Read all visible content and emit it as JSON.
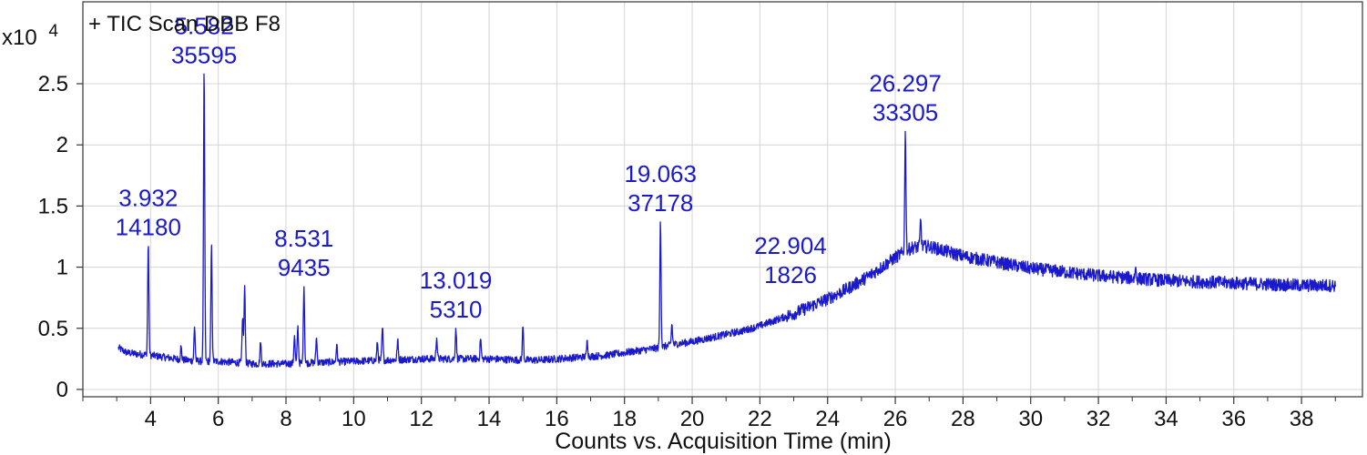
{
  "colors": {
    "trace": "#1a1acc",
    "label": "#1a1acc",
    "grid": "#d4d4d4",
    "axis": "#333333",
    "text": "#111111"
  },
  "chart_data": {
    "type": "line",
    "title": "+ TIC Scan DBB F8",
    "xlabel": "Counts vs. Acquisition Time (min)",
    "ylabel": "",
    "y_multiplier_label": {
      "base": "x10",
      "exponent": "4"
    },
    "xlim": [
      2.0,
      39.8
    ],
    "ylim": [
      -0.06,
      3.17
    ],
    "x_ticks": [
      4,
      6,
      8,
      10,
      12,
      14,
      16,
      18,
      20,
      22,
      24,
      26,
      28,
      30,
      32,
      34,
      36,
      38
    ],
    "y_ticks": [
      0,
      0.5,
      1,
      1.5,
      2,
      2.5
    ],
    "y_tick_labels": [
      "0",
      "0.5",
      "1",
      "1.5",
      "2",
      "2.5"
    ],
    "grid": true,
    "series": [
      {
        "baseline": {
          "x": [
            3.05,
            3.3,
            3.6,
            4.0,
            4.5,
            5.0,
            5.5,
            6.0,
            6.5,
            7.0,
            7.5,
            8.0,
            9.0,
            10.0,
            11.0,
            12.0,
            13.0,
            14.0,
            15.0,
            15.5,
            16.0,
            16.5,
            17.0,
            17.5,
            18.0,
            18.5,
            19.0,
            19.5,
            20.0,
            20.5,
            21.0,
            21.5,
            22.0,
            22.5,
            23.0,
            23.5,
            24.0,
            24.5,
            25.0,
            25.5,
            26.0,
            26.5,
            27.0,
            27.5,
            28.0,
            29.0,
            30.0,
            31.0,
            32.0,
            33.0,
            34.0,
            35.0,
            36.0,
            37.0,
            38.0,
            39.0
          ],
          "y": [
            0.34,
            0.3,
            0.29,
            0.28,
            0.26,
            0.24,
            0.23,
            0.23,
            0.22,
            0.21,
            0.21,
            0.21,
            0.22,
            0.23,
            0.24,
            0.25,
            0.25,
            0.25,
            0.24,
            0.24,
            0.25,
            0.26,
            0.27,
            0.28,
            0.3,
            0.32,
            0.34,
            0.37,
            0.39,
            0.42,
            0.45,
            0.48,
            0.52,
            0.57,
            0.62,
            0.68,
            0.74,
            0.81,
            0.89,
            0.98,
            1.08,
            1.16,
            1.17,
            1.13,
            1.09,
            1.04,
            0.99,
            0.96,
            0.93,
            0.91,
            0.89,
            0.88,
            0.87,
            0.86,
            0.85,
            0.85
          ]
        },
        "peaks": [
          {
            "x": 3.932,
            "h": 1.17
          },
          {
            "x": 4.9,
            "h": 0.35
          },
          {
            "x": 5.3,
            "h": 0.51
          },
          {
            "x": 5.582,
            "h": 2.58
          },
          {
            "x": 5.8,
            "h": 1.18
          },
          {
            "x": 6.72,
            "h": 0.58
          },
          {
            "x": 6.78,
            "h": 0.85
          },
          {
            "x": 7.25,
            "h": 0.38
          },
          {
            "x": 8.25,
            "h": 0.44
          },
          {
            "x": 8.35,
            "h": 0.52
          },
          {
            "x": 8.531,
            "h": 0.84
          },
          {
            "x": 8.9,
            "h": 0.42
          },
          {
            "x": 9.5,
            "h": 0.37
          },
          {
            "x": 10.7,
            "h": 0.38
          },
          {
            "x": 10.85,
            "h": 0.5
          },
          {
            "x": 11.3,
            "h": 0.4
          },
          {
            "x": 12.45,
            "h": 0.42
          },
          {
            "x": 13.019,
            "h": 0.5
          },
          {
            "x": 13.75,
            "h": 0.41
          },
          {
            "x": 15.0,
            "h": 0.51
          },
          {
            "x": 16.9,
            "h": 0.4
          },
          {
            "x": 19.063,
            "h": 1.37
          },
          {
            "x": 19.4,
            "h": 0.53
          },
          {
            "x": 26.297,
            "h": 2.11
          },
          {
            "x": 26.75,
            "h": 1.38
          },
          {
            "x": 33.1,
            "h": 1.0
          }
        ]
      }
    ],
    "annotations": [
      {
        "time": "3.932",
        "area": "14180",
        "x": 3.932,
        "y": 1.17
      },
      {
        "time": "5.582",
        "area": "35595",
        "x": 5.582,
        "y": 2.58
      },
      {
        "time": "8.531",
        "area": "9435",
        "x": 8.531,
        "y": 0.84
      },
      {
        "time": "13.019",
        "area": "5310",
        "x": 13.019,
        "y": 0.5
      },
      {
        "time": "19.063",
        "area": "37178",
        "x": 19.063,
        "y": 1.37
      },
      {
        "time": "22.904",
        "area": "1826",
        "x": 22.904,
        "y": 0.78
      },
      {
        "time": "26.297",
        "area": "33305",
        "x": 26.297,
        "y": 2.11
      }
    ]
  }
}
